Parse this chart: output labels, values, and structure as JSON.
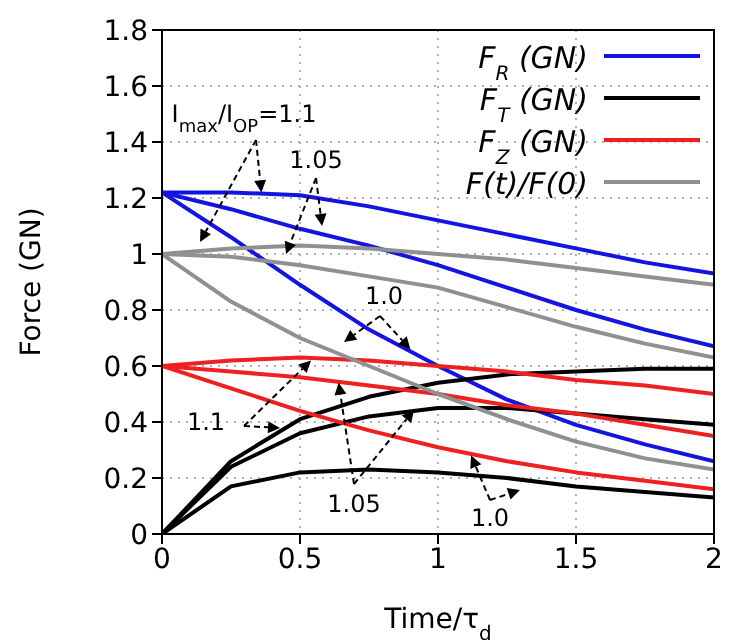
{
  "chart_data": {
    "type": "line",
    "xlabel": "Time/τ$_{d}$",
    "ylabel": "Force (GN)",
    "x": [
      0,
      0.25,
      0.5,
      0.75,
      1,
      1.25,
      1.5,
      1.75,
      2
    ],
    "series": [
      {
        "name": "F$_{R}$ (GN)",
        "color": "#1414e0",
        "values": [
          1.22,
          1.22,
          1.21,
          1.17,
          1.12,
          1.07,
          1.02,
          0.97,
          0.93
        ]
      },
      {
        "color": "#1414e0",
        "values": [
          1.22,
          1.16,
          1.09,
          1.03,
          0.96,
          0.88,
          0.8,
          0.73,
          0.67
        ]
      },
      {
        "color": "#1414e0",
        "values": [
          1.22,
          1.06,
          0.89,
          0.73,
          0.6,
          0.48,
          0.39,
          0.32,
          0.26
        ]
      },
      {
        "name": "F$_{T}$ (GN)",
        "color": "#000000",
        "values": [
          0,
          0.26,
          0.41,
          0.49,
          0.54,
          0.57,
          0.58,
          0.59,
          0.59
        ]
      },
      {
        "color": "#000000",
        "values": [
          0,
          0.24,
          0.36,
          0.42,
          0.45,
          0.45,
          0.43,
          0.41,
          0.39
        ]
      },
      {
        "color": "#000000",
        "values": [
          0,
          0.17,
          0.22,
          0.23,
          0.22,
          0.2,
          0.17,
          0.15,
          0.13
        ]
      },
      {
        "name": "F$_{Z}$ (GN)",
        "color": "#ee2020",
        "values": [
          0.6,
          0.62,
          0.63,
          0.62,
          0.6,
          0.58,
          0.55,
          0.53,
          0.5
        ]
      },
      {
        "color": "#ee2020",
        "values": [
          0.6,
          0.58,
          0.56,
          0.53,
          0.5,
          0.46,
          0.43,
          0.39,
          0.35
        ]
      },
      {
        "color": "#ee2020",
        "values": [
          0.6,
          0.52,
          0.44,
          0.37,
          0.31,
          0.26,
          0.22,
          0.19,
          0.16
        ]
      },
      {
        "name": "F(t)/F(0)",
        "color": "#909090",
        "values": [
          1.0,
          1.02,
          1.03,
          1.02,
          1.0,
          0.98,
          0.95,
          0.92,
          0.89
        ]
      },
      {
        "color": "#909090",
        "values": [
          1.0,
          0.99,
          0.96,
          0.92,
          0.88,
          0.81,
          0.74,
          0.68,
          0.63
        ]
      },
      {
        "color": "#909090",
        "values": [
          1.0,
          0.83,
          0.7,
          0.6,
          0.5,
          0.41,
          0.33,
          0.27,
          0.23
        ]
      }
    ],
    "xlim": [
      0,
      2
    ],
    "xticks": [
      0,
      0.5,
      1,
      1.5,
      2
    ],
    "ylim": [
      0,
      1.8
    ],
    "yticks": [
      0,
      0.2,
      0.4,
      0.6,
      0.8,
      1,
      1.2,
      1.4,
      1.6,
      1.8
    ],
    "grid": true,
    "legend": "top right",
    "annotations": [
      {
        "text": "I$_{max}$/I$_{OP}$=1.1",
        "x": 0.36,
        "y": 1.22
      },
      {
        "text": "1.05",
        "x": 0.58,
        "y": 1.1
      },
      {
        "text": "1.0",
        "x": 0.9,
        "y": 0.66
      },
      {
        "text": "1.1",
        "x": 0.54,
        "y": 0.62
      },
      {
        "text": "1.05",
        "x": 0.64,
        "y": 0.54
      },
      {
        "text": "1.0",
        "x": 1.12,
        "y": 0.28
      }
    ]
  }
}
